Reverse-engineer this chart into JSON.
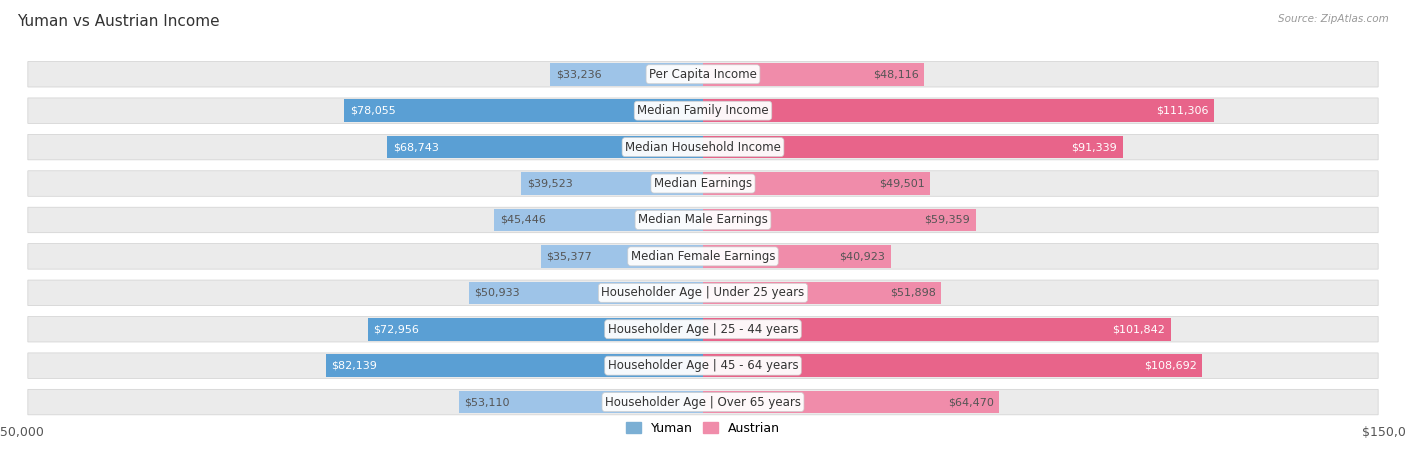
{
  "title": "Yuman vs Austrian Income",
  "source": "Source: ZipAtlas.com",
  "categories": [
    "Per Capita Income",
    "Median Family Income",
    "Median Household Income",
    "Median Earnings",
    "Median Male Earnings",
    "Median Female Earnings",
    "Householder Age | Under 25 years",
    "Householder Age | 25 - 44 years",
    "Householder Age | 45 - 64 years",
    "Householder Age | Over 65 years"
  ],
  "yuman_values": [
    33236,
    78055,
    68743,
    39523,
    45446,
    35377,
    50933,
    72956,
    82139,
    53110
  ],
  "austrian_values": [
    48116,
    111306,
    91339,
    49501,
    59359,
    40923,
    51898,
    101842,
    108692,
    64470
  ],
  "yuman_labels": [
    "$33,236",
    "$78,055",
    "$68,743",
    "$39,523",
    "$45,446",
    "$35,377",
    "$50,933",
    "$72,956",
    "$82,139",
    "$53,110"
  ],
  "austrian_labels": [
    "$48,116",
    "$111,306",
    "$91,339",
    "$49,501",
    "$59,359",
    "$40,923",
    "$51,898",
    "$101,842",
    "$108,692",
    "$64,470"
  ],
  "yuman_color": "#7bafd4",
  "austrian_color": "#f08caa",
  "austrian_color_dark": "#e8648a",
  "axis_max": 150000,
  "bg_color": "#f5f5f5",
  "row_bg_color": "#ebebeb",
  "title_fontsize": 11,
  "cat_fontsize": 8.5,
  "val_fontsize": 8,
  "legend_fontsize": 9,
  "yuman_dark_threshold": 60000,
  "austrian_dark_threshold": 70000
}
